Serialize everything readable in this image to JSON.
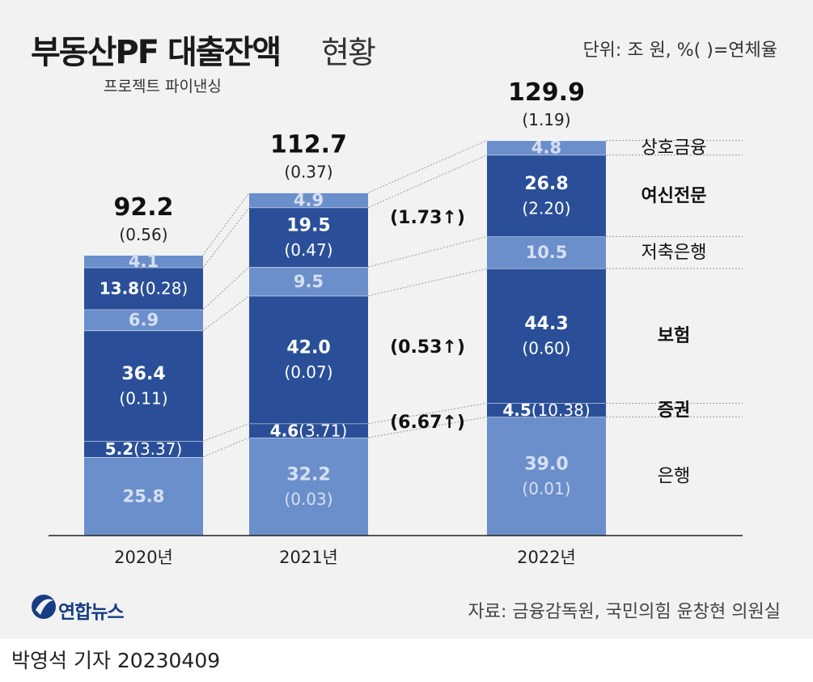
{
  "header": {
    "title": "부동산PF 대출잔액",
    "title_suffix": "현황",
    "subtitle": "프로젝트 파이낸싱",
    "unit": "단위: 조 원, %( )=연체율"
  },
  "footer": {
    "logo": "연합뉴스",
    "source": "자료: 금융감독원, 국민의힘 윤창현 의원실",
    "byline": "박영석 기자  20230409"
  },
  "colors": {
    "light": "#6b8fcb",
    "dark": "#2a4f98",
    "background": "#f2f2f2",
    "text_light": "#d6e0f2"
  },
  "chart_data": {
    "type": "bar",
    "stacked": true,
    "categories": [
      "2020년",
      "2021년",
      "2022년"
    ],
    "series": [
      {
        "name": "은행",
        "values": [
          25.8,
          32.2,
          39.0
        ],
        "delinquency": [
          null,
          0.03,
          0.01
        ],
        "tone": "light",
        "bold": false
      },
      {
        "name": "증권",
        "values": [
          5.2,
          4.6,
          4.5
        ],
        "delinquency": [
          3.37,
          3.71,
          10.38
        ],
        "tone": "dark",
        "bold": true
      },
      {
        "name": "보험",
        "values": [
          36.4,
          42.0,
          44.3
        ],
        "delinquency": [
          0.11,
          0.07,
          0.6
        ],
        "tone": "dark",
        "bold": true
      },
      {
        "name": "저축은행",
        "values": [
          6.9,
          9.5,
          10.5
        ],
        "delinquency": [
          null,
          null,
          null
        ],
        "tone": "light",
        "bold": false
      },
      {
        "name": "여신전문",
        "values": [
          13.8,
          19.5,
          26.8
        ],
        "delinquency": [
          0.28,
          0.47,
          2.2
        ],
        "tone": "dark",
        "bold": true
      },
      {
        "name": "상호금융",
        "values": [
          4.1,
          4.9,
          4.8
        ],
        "delinquency": [
          null,
          null,
          null
        ],
        "tone": "light",
        "bold": false
      }
    ],
    "totals": [
      92.2,
      112.7,
      129.9
    ],
    "total_delinquency": [
      0.56,
      0.37,
      1.19
    ],
    "value_labels": [
      [
        "25.8",
        "5.2",
        "36.4",
        "6.9",
        "13.8",
        "4.1"
      ],
      [
        "32.2",
        "4.6",
        "42.0",
        "9.5",
        "19.5",
        "4.9"
      ],
      [
        "39.0",
        "4.5",
        "44.3",
        "10.5",
        "26.8",
        "4.8"
      ]
    ],
    "rate_labels": [
      [
        "",
        "(3.37)",
        "(0.11)",
        "",
        "(0.28)",
        ""
      ],
      [
        "(0.03)",
        "(3.71)",
        "(0.07)",
        "",
        "(0.47)",
        ""
      ],
      [
        "(0.01)",
        "(10.38)",
        "(0.60)",
        "",
        "(2.20)",
        ""
      ]
    ],
    "total_labels": [
      "92.2",
      "112.7",
      "129.9"
    ],
    "total_rate_labels": [
      "(0.56)",
      "(0.37)",
      "(1.19)"
    ],
    "annotations": [
      {
        "text": "(1.73↑)",
        "series": "여신전문"
      },
      {
        "text": "(0.53↑)",
        "series": "보험"
      },
      {
        "text": "(6.67↑)",
        "series": "증권"
      }
    ]
  }
}
